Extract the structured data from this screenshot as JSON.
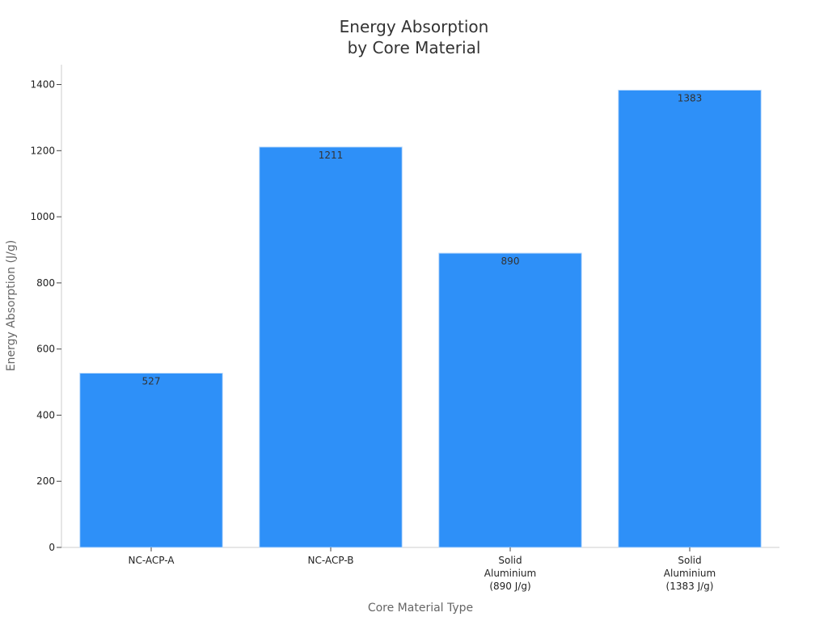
{
  "chart_data": {
    "type": "bar",
    "title_lines": [
      "Energy Absorption",
      "by Core Material"
    ],
    "xlabel": "Core Material Type",
    "ylabel": "Energy Absorption (J/g)",
    "categories": [
      [
        "NC-ACP-A"
      ],
      [
        "NC-ACP-B"
      ],
      [
        "Solid",
        "Aluminium",
        "(890 J/g)"
      ],
      [
        "Solid",
        "Aluminium",
        "(1383 J/g)"
      ]
    ],
    "values": [
      527,
      1211,
      890,
      1383
    ],
    "data_labels": [
      "527",
      "1211",
      "890",
      "1383"
    ],
    "yticks": [
      0,
      200,
      400,
      600,
      800,
      1000,
      1200,
      1400
    ],
    "ylim": [
      0,
      1460
    ],
    "grid": false,
    "bar_color": "#2e90f8",
    "bar_edge_color": "#b9d9fb"
  }
}
